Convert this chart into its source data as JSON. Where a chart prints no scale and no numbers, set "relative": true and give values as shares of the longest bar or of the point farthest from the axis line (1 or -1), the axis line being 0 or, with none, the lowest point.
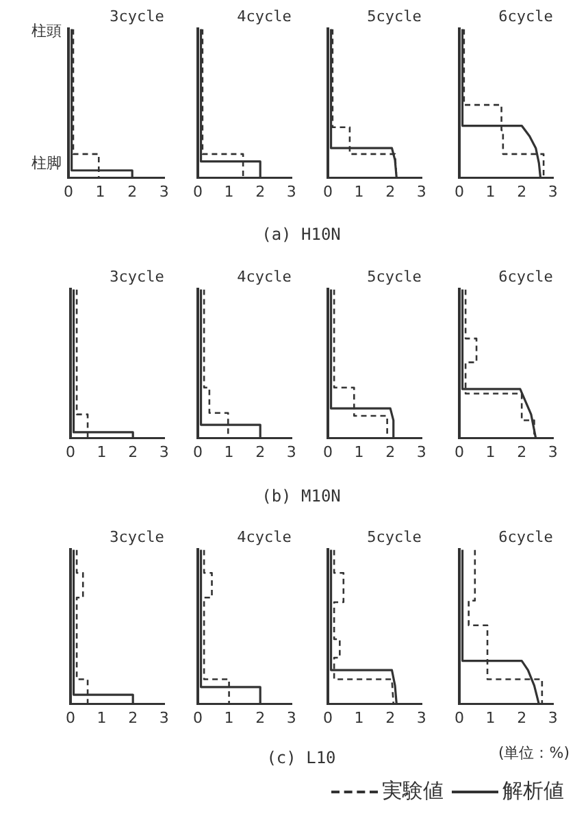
{
  "chart_data": [
    {
      "type": "line",
      "title": "3cycle",
      "annotations": [
        "(a) H10N",
        "柱頭",
        "柱脚"
      ],
      "xlim": [
        0,
        3
      ],
      "xticks": [
        0,
        1,
        2,
        3
      ],
      "relative": true,
      "grid": false,
      "legend": false,
      "marker": "none",
      "series": [
        {
          "color": "#333333",
          "line_style": "dashed",
          "x": [
            0.15,
            0.15,
            0.95,
            0.95
          ],
          "values": [
            1,
            0.16,
            0.16,
            0
          ]
        },
        {
          "color": "#333333",
          "line_style": "solid",
          "x": [
            0.1,
            0.1,
            2.0,
            2.0
          ],
          "values": [
            1,
            0.05,
            0.05,
            0
          ]
        }
      ]
    },
    {
      "type": "line",
      "title": "4cycle",
      "xlim": [
        0,
        3
      ],
      "xticks": [
        0,
        1,
        2,
        3
      ],
      "relative": true,
      "grid": false,
      "legend": false,
      "marker": "none",
      "series": [
        {
          "color": "#333333",
          "line_style": "dashed",
          "x": [
            0.15,
            0.15,
            1.45,
            1.45
          ],
          "values": [
            1,
            0.16,
            0.16,
            0
          ]
        },
        {
          "color": "#333333",
          "line_style": "solid",
          "x": [
            0.1,
            0.1,
            2.0,
            2.0
          ],
          "values": [
            1,
            0.11,
            0.11,
            0
          ]
        }
      ]
    },
    {
      "type": "line",
      "title": "5cycle",
      "xlim": [
        0,
        3
      ],
      "xticks": [
        0,
        1,
        2,
        3
      ],
      "relative": true,
      "grid": false,
      "legend": false,
      "marker": "none",
      "series": [
        {
          "color": "#333333",
          "line_style": "dashed",
          "x": [
            0.15,
            0.15,
            0.7,
            0.7,
            2.15,
            2.2
          ],
          "values": [
            1,
            0.34,
            0.34,
            0.16,
            0.16,
            0
          ]
        },
        {
          "color": "#333333",
          "line_style": "solid",
          "x": [
            0.1,
            0.1,
            2.05,
            2.15,
            2.2
          ],
          "values": [
            1,
            0.2,
            0.2,
            0.12,
            0
          ]
        }
      ]
    },
    {
      "type": "line",
      "title": "6cycle",
      "xlim": [
        0,
        3
      ],
      "xticks": [
        0,
        1,
        2,
        3
      ],
      "relative": true,
      "grid": false,
      "legend": false,
      "marker": "none",
      "series": [
        {
          "color": "#333333",
          "line_style": "dashed",
          "x": [
            0.15,
            0.15,
            1.35,
            1.35,
            1.4,
            1.4,
            2.7,
            2.7
          ],
          "values": [
            1,
            0.49,
            0.49,
            0.32,
            0.32,
            0.16,
            0.16,
            0
          ]
        },
        {
          "color": "#333333",
          "line_style": "solid",
          "x": [
            0.1,
            0.1,
            2.0,
            2.25,
            2.45,
            2.55,
            2.6
          ],
          "values": [
            1,
            0.35,
            0.35,
            0.28,
            0.2,
            0.1,
            0
          ]
        }
      ]
    },
    {
      "type": "line",
      "title": "3cycle",
      "annotations": [
        "(b) M10N"
      ],
      "xlim": [
        0,
        3
      ],
      "xticks": [
        0,
        1,
        2,
        3
      ],
      "relative": true,
      "grid": false,
      "legend": false,
      "marker": "none",
      "series": [
        {
          "color": "#333333",
          "line_style": "dashed",
          "x": [
            0.2,
            0.2,
            0.55,
            0.55
          ],
          "values": [
            1,
            0.16,
            0.16,
            0
          ]
        },
        {
          "color": "#333333",
          "line_style": "solid",
          "x": [
            0.1,
            0.1,
            2.0,
            2.0
          ],
          "values": [
            1,
            0.04,
            0.04,
            0
          ]
        }
      ]
    },
    {
      "type": "line",
      "title": "4cycle",
      "xlim": [
        0,
        3
      ],
      "xticks": [
        0,
        1,
        2,
        3
      ],
      "relative": true,
      "grid": false,
      "legend": false,
      "marker": "none",
      "series": [
        {
          "color": "#333333",
          "line_style": "dashed",
          "x": [
            0.2,
            0.2,
            0.37,
            0.37,
            0.97,
            0.97
          ],
          "values": [
            1,
            0.34,
            0.34,
            0.17,
            0.17,
            0
          ]
        },
        {
          "color": "#333333",
          "line_style": "solid",
          "x": [
            0.1,
            0.1,
            2.0,
            2.0
          ],
          "values": [
            1,
            0.09,
            0.09,
            0
          ]
        }
      ]
    },
    {
      "type": "line",
      "title": "5cycle",
      "xlim": [
        0,
        3
      ],
      "xticks": [
        0,
        1,
        2,
        3
      ],
      "relative": true,
      "grid": false,
      "legend": false,
      "marker": "none",
      "series": [
        {
          "color": "#333333",
          "line_style": "dashed",
          "x": [
            0.2,
            0.2,
            0.84,
            0.84,
            1.9,
            1.9
          ],
          "values": [
            1,
            0.34,
            0.34,
            0.15,
            0.15,
            0
          ]
        },
        {
          "color": "#333333",
          "line_style": "solid",
          "x": [
            0.1,
            0.1,
            2.0,
            2.1,
            2.1
          ],
          "values": [
            1,
            0.2,
            0.2,
            0.12,
            0
          ]
        }
      ]
    },
    {
      "type": "line",
      "title": "6cycle",
      "xlim": [
        0,
        3
      ],
      "xticks": [
        0,
        1,
        2,
        3
      ],
      "relative": true,
      "grid": false,
      "legend": false,
      "marker": "none",
      "series": [
        {
          "color": "#333333",
          "line_style": "dashed",
          "x": [
            0.2,
            0.2,
            0.55,
            0.55,
            0.2,
            0.2,
            2.0,
            2.0,
            2.4,
            2.4
          ],
          "values": [
            1,
            0.67,
            0.67,
            0.51,
            0.51,
            0.3,
            0.3,
            0.12,
            0.12,
            0
          ]
        },
        {
          "color": "#333333",
          "line_style": "solid",
          "x": [
            0.1,
            0.1,
            1.95,
            2.3,
            2.45
          ],
          "values": [
            1,
            0.33,
            0.33,
            0.16,
            0
          ]
        }
      ]
    },
    {
      "type": "line",
      "title": "3cycle",
      "annotations": [
        "(c) L10"
      ],
      "xlim": [
        0,
        3
      ],
      "xticks": [
        0,
        1,
        2,
        3
      ],
      "relative": true,
      "grid": false,
      "legend": false,
      "marker": "none",
      "series": [
        {
          "color": "#333333",
          "line_style": "dashed",
          "x": [
            0.2,
            0.2,
            0.4,
            0.4,
            0.2,
            0.2,
            0.55,
            0.55
          ],
          "values": [
            1,
            0.85,
            0.85,
            0.69,
            0.69,
            0.16,
            0.16,
            0
          ]
        },
        {
          "color": "#333333",
          "line_style": "solid",
          "x": [
            0.1,
            0.1,
            2.0,
            2.0
          ],
          "values": [
            1,
            0.06,
            0.06,
            0
          ]
        }
      ]
    },
    {
      "type": "line",
      "title": "4cycle",
      "xlim": [
        0,
        3
      ],
      "xticks": [
        0,
        1,
        2,
        3
      ],
      "relative": true,
      "grid": false,
      "legend": false,
      "marker": "none",
      "series": [
        {
          "color": "#333333",
          "line_style": "dashed",
          "x": [
            0.2,
            0.2,
            0.45,
            0.45,
            0.2,
            0.2,
            1.0,
            1.0
          ],
          "values": [
            1,
            0.85,
            0.85,
            0.69,
            0.69,
            0.16,
            0.16,
            0
          ]
        },
        {
          "color": "#333333",
          "line_style": "solid",
          "x": [
            0.1,
            0.1,
            2.0,
            2.0
          ],
          "values": [
            1,
            0.11,
            0.11,
            0
          ]
        }
      ]
    },
    {
      "type": "line",
      "title": "5cycle",
      "xlim": [
        0,
        3
      ],
      "xticks": [
        0,
        1,
        2,
        3
      ],
      "relative": true,
      "grid": false,
      "legend": false,
      "marker": "none",
      "series": [
        {
          "color": "#333333",
          "line_style": "dashed",
          "x": [
            0.2,
            0.2,
            0.5,
            0.5,
            0.2,
            0.2,
            0.38,
            0.38,
            0.2,
            0.2,
            2.05,
            2.1
          ],
          "values": [
            1,
            0.85,
            0.85,
            0.66,
            0.66,
            0.42,
            0.42,
            0.3,
            0.3,
            0.16,
            0.16,
            0
          ]
        },
        {
          "color": "#333333",
          "line_style": "solid",
          "x": [
            0.1,
            0.1,
            2.05,
            2.15,
            2.2
          ],
          "values": [
            1,
            0.22,
            0.22,
            0.12,
            0
          ]
        }
      ]
    },
    {
      "type": "line",
      "title": "6cycle",
      "annotations": [
        "(単位：%)"
      ],
      "xlim": [
        0,
        3
      ],
      "xticks": [
        0,
        1,
        2,
        3
      ],
      "relative": true,
      "grid": false,
      "legend": "bottom",
      "marker": "none",
      "series": [
        {
          "name": "実験値",
          "color": "#333333",
          "line_style": "dashed",
          "x": [
            0.5,
            0.5,
            0.3,
            0.3,
            0.9,
            0.9,
            2.65,
            2.65
          ],
          "values": [
            1,
            0.67,
            0.67,
            0.51,
            0.51,
            0.16,
            0.16,
            0
          ]
        },
        {
          "name": "解析値",
          "color": "#333333",
          "line_style": "solid",
          "x": [
            0.1,
            0.1,
            2.0,
            2.2,
            2.4,
            2.55
          ],
          "values": [
            1,
            0.28,
            0.28,
            0.22,
            0.12,
            0
          ]
        }
      ]
    }
  ]
}
